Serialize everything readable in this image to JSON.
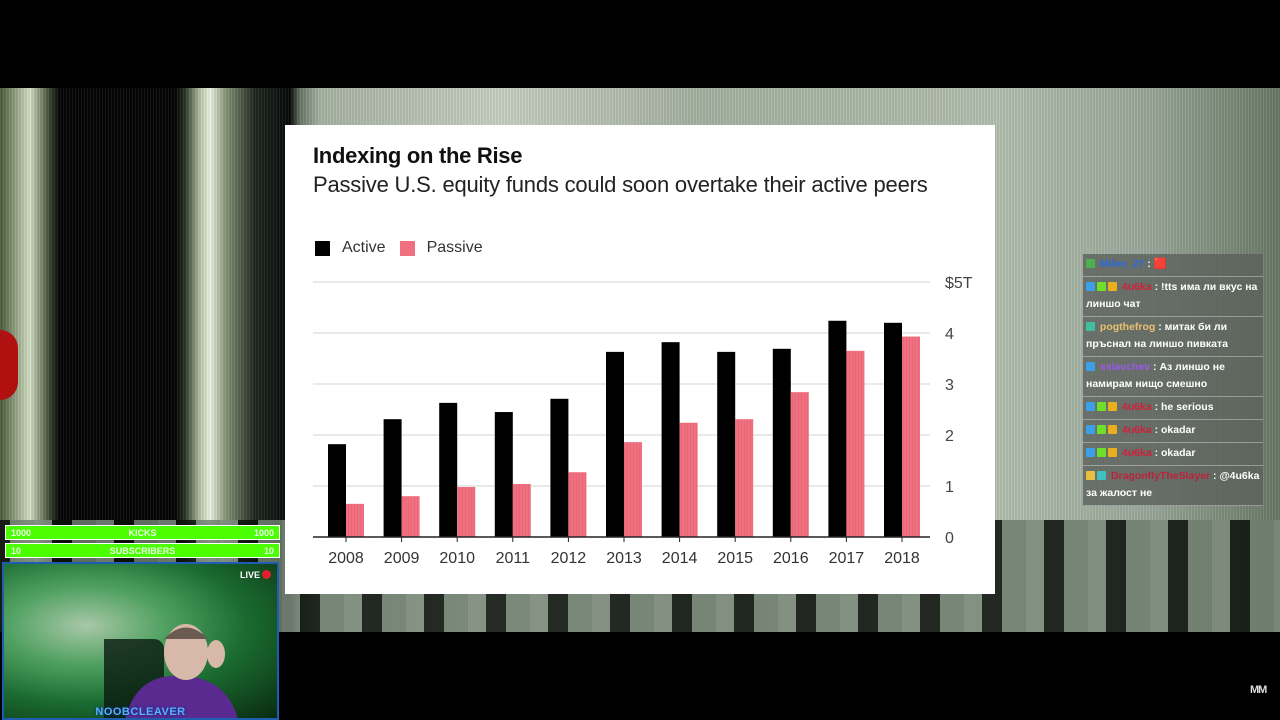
{
  "stream": {
    "overlay_bars": [
      {
        "left": "1000",
        "label": "KICKS",
        "right": "1000"
      },
      {
        "left": "10",
        "label": "SUBSCRIBERS",
        "right": "10"
      }
    ],
    "live_label": "LIVE",
    "streamer_name": "NOOBCLEAVER",
    "corner_logo": "MM"
  },
  "chat": {
    "messages": [
      {
        "user": "Milen_27",
        "user_color": "#2a6ae0",
        "badges": [
          "#4caf50"
        ],
        "text": ": 🟥"
      },
      {
        "user": "4u6ka",
        "user_color": "#d0203a",
        "badges": [
          "#3ba0e8",
          "#6ee02a",
          "#e8b020"
        ],
        "text": ": !tts има ли вкус на линшо чат"
      },
      {
        "user": "pogthefrog",
        "user_color": "#e8c070",
        "badges": [
          "#40c0a0"
        ],
        "text": ": митак би ли пръснал на линшо пивката"
      },
      {
        "user": "sslavchev",
        "user_color": "#9a5ae8",
        "badges": [
          "#3ba0e8"
        ],
        "text": ": Аз линшо не намирам нищо смешно"
      },
      {
        "user": "4u6ka",
        "user_color": "#d0203a",
        "badges": [
          "#3ba0e8",
          "#6ee02a",
          "#e8b020"
        ],
        "text": ": he serious"
      },
      {
        "user": "4u6ka",
        "user_color": "#d0203a",
        "badges": [
          "#3ba0e8",
          "#6ee02a",
          "#e8b020"
        ],
        "text": ": okadar"
      },
      {
        "user": "4u6ka",
        "user_color": "#d0203a",
        "badges": [
          "#3ba0e8",
          "#6ee02a",
          "#e8b020"
        ],
        "text": ": okadar"
      },
      {
        "user": "DragonflyTheSlayer",
        "user_color": "#c0203a",
        "badges": [
          "#e8c040",
          "#40c0c0"
        ],
        "text": ": @4u6ka за жалост не"
      }
    ]
  },
  "chart_data": {
    "type": "bar",
    "title": "Indexing on the Rise",
    "subtitle": "Passive U.S. equity funds could soon overtake their active peers",
    "xlabel": "",
    "ylabel": "",
    "categories": [
      "2008",
      "2009",
      "2010",
      "2011",
      "2012",
      "2013",
      "2014",
      "2015",
      "2016",
      "2017",
      "2018"
    ],
    "series": [
      {
        "name": "Active",
        "color": "#000000",
        "values": [
          1.82,
          2.31,
          2.63,
          2.45,
          2.71,
          3.63,
          3.82,
          3.63,
          3.69,
          4.24,
          4.2
        ]
      },
      {
        "name": "Passive",
        "color": "#f07080",
        "values": [
          0.65,
          0.8,
          0.98,
          1.04,
          1.27,
          1.86,
          2.24,
          2.31,
          2.84,
          3.65,
          3.93
        ]
      }
    ],
    "ylim": [
      0,
      5
    ],
    "yticks": [
      {
        "value": 0,
        "label": "0"
      },
      {
        "value": 1,
        "label": "1"
      },
      {
        "value": 2,
        "label": "2"
      },
      {
        "value": 3,
        "label": "3"
      },
      {
        "value": 4,
        "label": "4"
      },
      {
        "value": 5,
        "label": "$5T"
      }
    ],
    "grid": true,
    "legend_position": "top-left"
  }
}
